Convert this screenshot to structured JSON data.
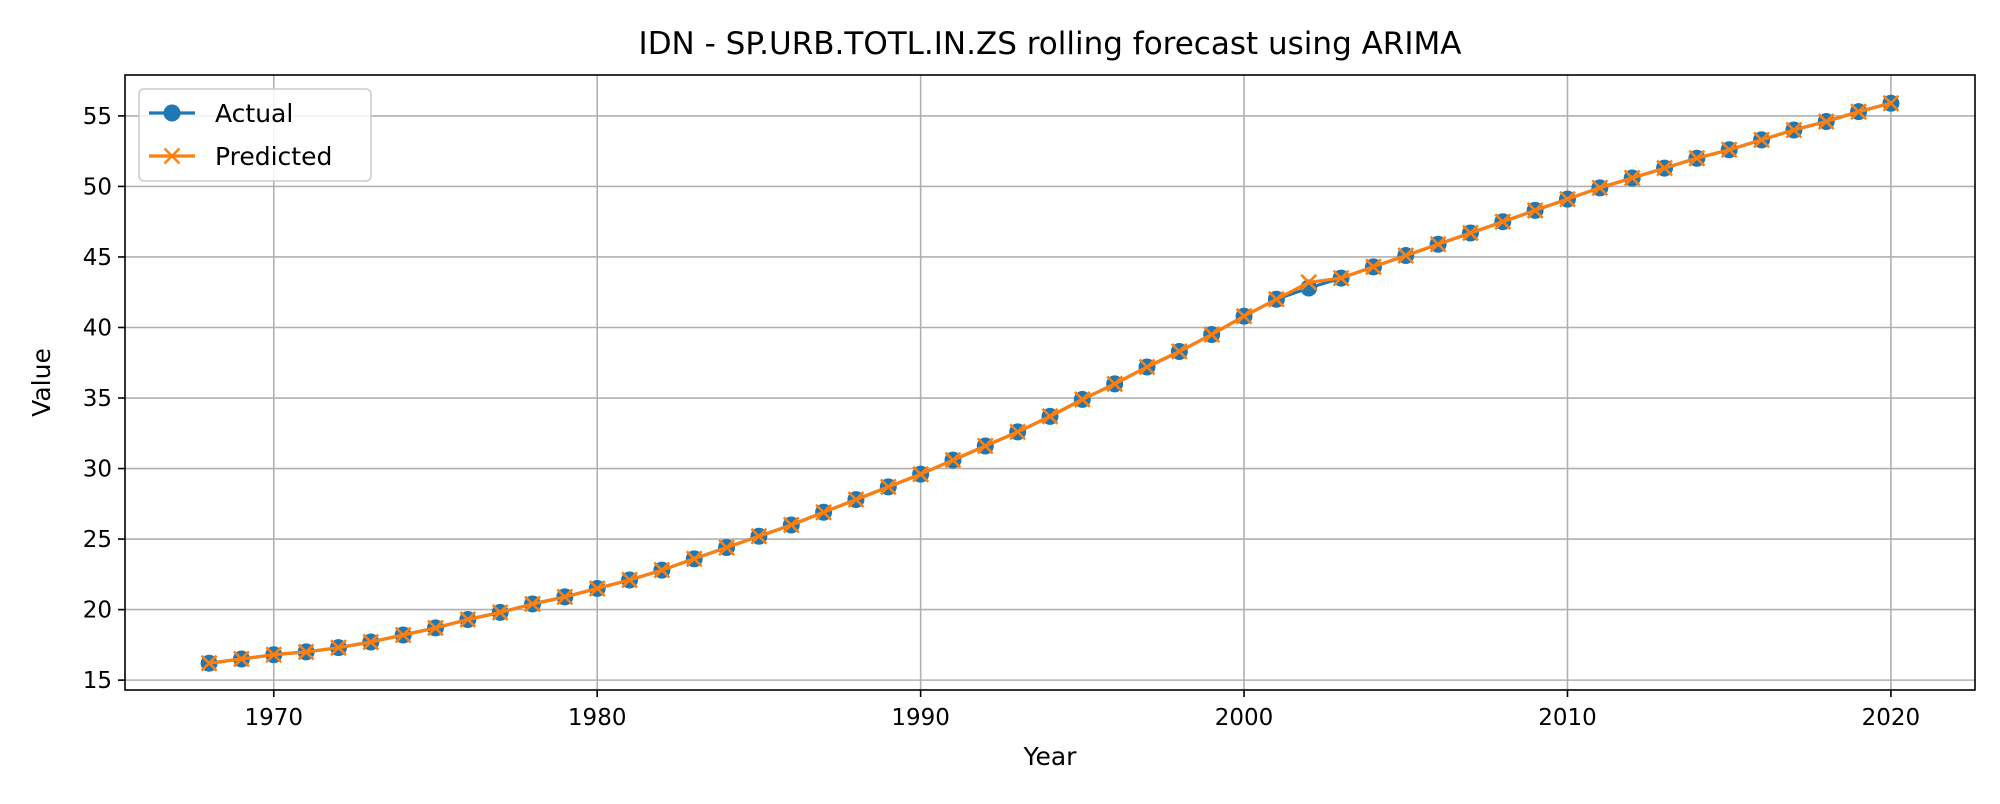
{
  "chart_data": {
    "type": "line",
    "title": "IDN - SP.URB.TOTL.IN.ZS rolling forecast using ARIMA",
    "xlabel": "Year",
    "ylabel": "Value",
    "xlim": [
      1965.4,
      2022.6
    ],
    "ylim": [
      14.3,
      57.9
    ],
    "xticks": [
      1970,
      1980,
      1990,
      2000,
      2010,
      2020
    ],
    "yticks": [
      15,
      20,
      25,
      30,
      35,
      40,
      45,
      50,
      55
    ],
    "grid": true,
    "legend_position": "top-left",
    "x": [
      1968,
      1969,
      1970,
      1971,
      1972,
      1973,
      1974,
      1975,
      1976,
      1977,
      1978,
      1979,
      1980,
      1981,
      1982,
      1983,
      1984,
      1985,
      1986,
      1987,
      1988,
      1989,
      1990,
      1991,
      1992,
      1993,
      1994,
      1995,
      1996,
      1997,
      1998,
      1999,
      2000,
      2001,
      2002,
      2003,
      2004,
      2005,
      2006,
      2007,
      2008,
      2009,
      2010,
      2011,
      2012,
      2013,
      2014,
      2015,
      2016,
      2017,
      2018,
      2019,
      2020
    ],
    "series": [
      {
        "name": "Actual",
        "color": "#1f77b4",
        "marker": "circle",
        "values": [
          16.2,
          16.5,
          16.8,
          17.0,
          17.3,
          17.7,
          18.2,
          18.7,
          19.3,
          19.8,
          20.4,
          20.9,
          21.5,
          22.1,
          22.8,
          23.6,
          24.4,
          25.2,
          26.0,
          26.9,
          27.8,
          28.7,
          29.6,
          30.6,
          31.6,
          32.6,
          33.7,
          34.9,
          36.0,
          37.2,
          38.3,
          39.5,
          40.8,
          42.0,
          42.8,
          43.5,
          44.3,
          45.1,
          45.9,
          46.7,
          47.5,
          48.3,
          49.1,
          49.9,
          50.6,
          51.3,
          52.0,
          52.6,
          53.3,
          54.0,
          54.6,
          55.3,
          55.9
        ]
      },
      {
        "name": "Predicted",
        "color": "#ff7f0e",
        "marker": "x",
        "values": [
          16.2,
          16.5,
          16.8,
          17.0,
          17.3,
          17.7,
          18.2,
          18.7,
          19.3,
          19.8,
          20.4,
          20.9,
          21.5,
          22.1,
          22.8,
          23.6,
          24.4,
          25.2,
          26.0,
          26.9,
          27.8,
          28.7,
          29.6,
          30.6,
          31.6,
          32.6,
          33.7,
          34.9,
          36.0,
          37.2,
          38.3,
          39.5,
          40.8,
          42.0,
          43.2,
          43.5,
          44.3,
          45.1,
          45.9,
          46.7,
          47.5,
          48.3,
          49.1,
          49.9,
          50.6,
          51.3,
          52.0,
          52.6,
          53.3,
          54.0,
          54.6,
          55.3,
          55.9
        ]
      }
    ]
  }
}
